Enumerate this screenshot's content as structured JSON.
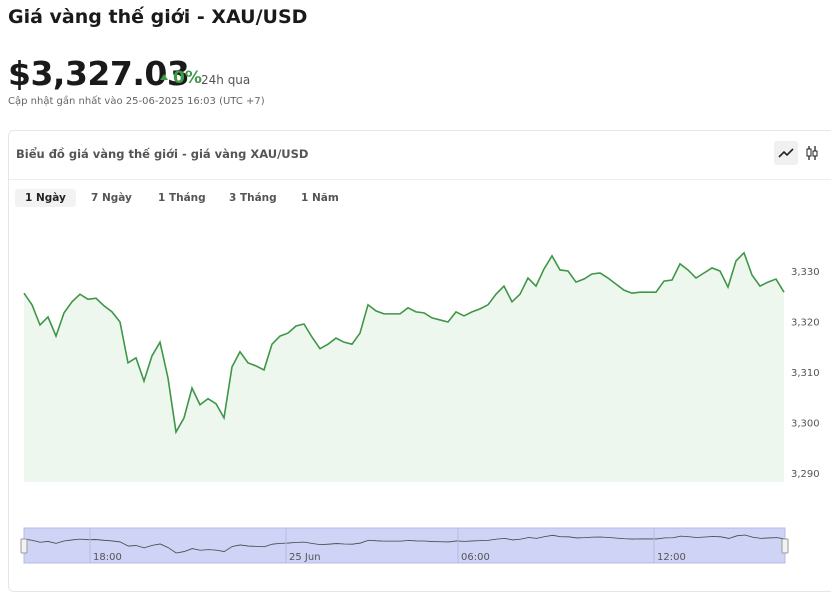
{
  "header": {
    "title": "Giá vàng thế giới - XAU/USD",
    "price": "$3,327.03",
    "change": "0%",
    "period": "24h qua",
    "updated": "Cập nhật gần nhất vào 25-06-2025 16:03 (UTC +7)"
  },
  "card": {
    "title": "Biểu đồ giá vàng thế giới - giá vàng XAU/USD",
    "tabs": [
      "1 Ngày",
      "7 Ngày",
      "1 Tháng",
      "3 Tháng",
      "1 Năm"
    ]
  },
  "chart_data": {
    "type": "line",
    "color": "#3f9647",
    "fill": "#eef7ee",
    "values": [
      3325.8,
      3323.5,
      3319.5,
      3321.1,
      3317.3,
      3321.9,
      3324.1,
      3325.6,
      3324.6,
      3324.8,
      3323.3,
      3322.1,
      3320.1,
      3312.0,
      3313.0,
      3308.4,
      3313.4,
      3316.1,
      3309.0,
      3298.3,
      3301.1,
      3307.0,
      3303.7,
      3304.9,
      3303.9,
      3301.1,
      3311.2,
      3314.2,
      3312.0,
      3311.4,
      3310.6,
      3315.7,
      3317.3,
      3317.9,
      3319.3,
      3319.7,
      3317.1,
      3314.8,
      3315.7,
      3316.9,
      3316.1,
      3315.7,
      3317.9,
      3323.5,
      3322.3,
      3321.7,
      3321.7,
      3321.7,
      3322.9,
      3322.1,
      3321.9,
      3320.9,
      3320.5,
      3320.1,
      3322.1,
      3321.3,
      3322.1,
      3322.7,
      3323.5,
      3325.6,
      3327.2,
      3324.1,
      3325.6,
      3328.8,
      3327.2,
      3330.6,
      3333.2,
      3330.4,
      3330.2,
      3328.0,
      3328.6,
      3329.6,
      3329.8,
      3328.8,
      3327.6,
      3326.4,
      3325.8,
      3326.0,
      3326.0,
      3326.0,
      3328.2,
      3328.4,
      3331.6,
      3330.4,
      3328.8,
      3329.8,
      3330.8,
      3330.2,
      3327.0,
      3332.2,
      3333.8,
      3329.4,
      3327.2,
      3328.0,
      3328.6,
      3326.0
    ],
    "ylim": [
      3288.4,
      3340
    ],
    "yticks": [
      {
        "value": 3290,
        "label": "3,290"
      },
      {
        "value": 3300,
        "label": "3,300"
      },
      {
        "value": 3310,
        "label": "3,310"
      },
      {
        "value": 3320,
        "label": "3,320"
      },
      {
        "value": 3330,
        "label": "3,330"
      }
    ],
    "navigator_labels": [
      "18:00",
      "25 Jun",
      "06:00",
      "12:00"
    ]
  }
}
